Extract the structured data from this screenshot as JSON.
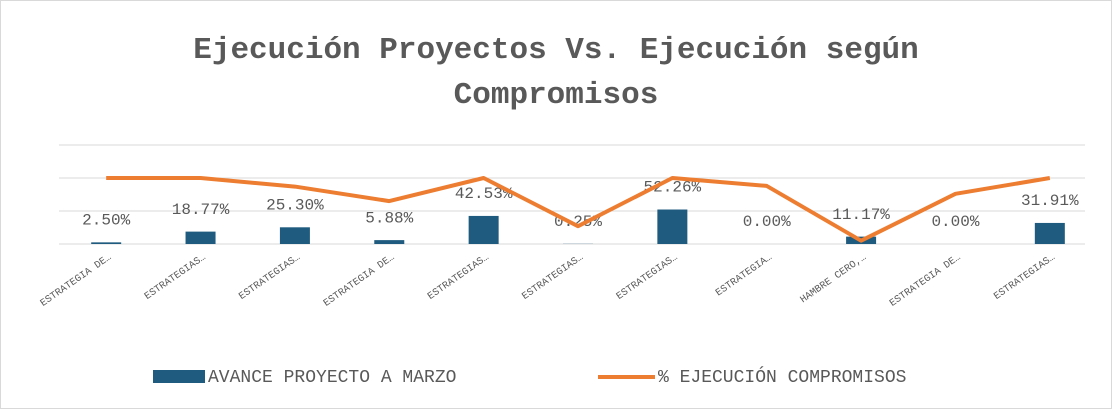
{
  "chart_data": {
    "type": "bar_line",
    "title": "Ejecución Proyectos Vs. Ejecución según Compromisos",
    "categories": [
      "ESTRATEGIA DE…",
      "ESTRATEGIAS…",
      "ESTRATEGIAS…",
      "ESTRATEGIA DE…",
      "ESTRATEGIAS…",
      "ESTRATEGIAS…",
      "ESTRATEGIAS…",
      "ESTRATEGIA…",
      "HAMBRE CERO,…",
      "ESTRATEGIA DE…",
      "ESTRATEGIAS…"
    ],
    "series": [
      {
        "name": "AVANCE PROYECTO A MARZO",
        "type": "bar",
        "color": "#1f5b7e",
        "values": [
          2.5,
          18.77,
          25.3,
          5.88,
          42.53,
          0.25,
          52.26,
          0,
          11.17,
          0,
          31.91
        ],
        "value_labels": [
          "2.50%",
          "18.77%",
          "25.30%",
          "5.88%",
          "42.53%",
          "0.25%",
          "52.26%",
          "0.00%",
          "11.17%",
          "0.00%",
          "31.91%"
        ]
      },
      {
        "name": "% EJECUCIÓN COMPROMISOS",
        "type": "line",
        "color": "#ed7d31",
        "values": [
          100,
          100,
          87,
          65,
          100,
          27,
          100,
          88,
          5,
          76,
          100
        ]
      }
    ],
    "ylim": [
      0,
      150
    ],
    "yticks": [
      0,
      50,
      100,
      150
    ],
    "grid": true,
    "legend": "bottom"
  }
}
